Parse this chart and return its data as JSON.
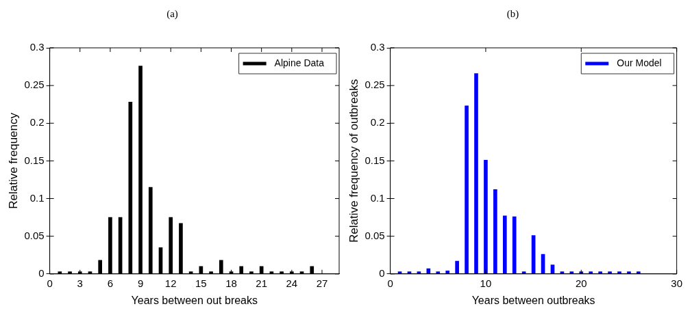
{
  "chart_data": [
    {
      "type": "bar",
      "title": "(a)",
      "xlabel": "Years between out breaks",
      "ylabel": "Relative frequency",
      "x": [
        1,
        2,
        3,
        4,
        5,
        6,
        7,
        8,
        9,
        10,
        11,
        12,
        13,
        14,
        15,
        16,
        17,
        18,
        19,
        20,
        21,
        22,
        23,
        24,
        25,
        26
      ],
      "series": [
        {
          "name": "Alpine Data",
          "color": "#000000",
          "values": [
            0.003,
            0.003,
            0.003,
            0.003,
            0.018,
            0.075,
            0.075,
            0.228,
            0.276,
            0.115,
            0.035,
            0.075,
            0.067,
            0.003,
            0.01,
            0.003,
            0.018,
            0.003,
            0.01,
            0.003,
            0.01,
            0.003,
            0.003,
            0.003,
            0.003,
            0.01
          ]
        }
      ],
      "xlim": [
        0,
        28.7
      ],
      "xticks": [
        0,
        3,
        6,
        9,
        12,
        15,
        18,
        21,
        24,
        27
      ],
      "ylim": [
        0,
        0.3
      ],
      "yticks": [
        0,
        0.05,
        0.1,
        0.15,
        0.2,
        0.25,
        0.3
      ],
      "grid": false,
      "legend": "top right"
    },
    {
      "type": "bar",
      "title": "(b)",
      "xlabel": "Years between outbreaks",
      "ylabel": "Relative frequency of outbreaks",
      "x": [
        1,
        2,
        3,
        4,
        5,
        6,
        7,
        8,
        9,
        10,
        11,
        12,
        13,
        14,
        15,
        16,
        17,
        18,
        19,
        20,
        21,
        22,
        23,
        24,
        25,
        26
      ],
      "series": [
        {
          "name": "Our Model",
          "color": "#0000ff",
          "values": [
            0.003,
            0.003,
            0.003,
            0.007,
            0.003,
            0.004,
            0.017,
            0.223,
            0.266,
            0.151,
            0.112,
            0.077,
            0.076,
            0.003,
            0.051,
            0.026,
            0.012,
            0.003,
            0.003,
            0.003,
            0.003,
            0.003,
            0.003,
            0.003,
            0.003,
            0.003
          ]
        }
      ],
      "xlim": [
        0,
        30
      ],
      "xticks": [
        0,
        10,
        20,
        30
      ],
      "ylim": [
        0,
        0.3
      ],
      "yticks": [
        0,
        0.05,
        0.1,
        0.15,
        0.2,
        0.25,
        0.3
      ],
      "grid": false,
      "legend": "top right"
    }
  ]
}
